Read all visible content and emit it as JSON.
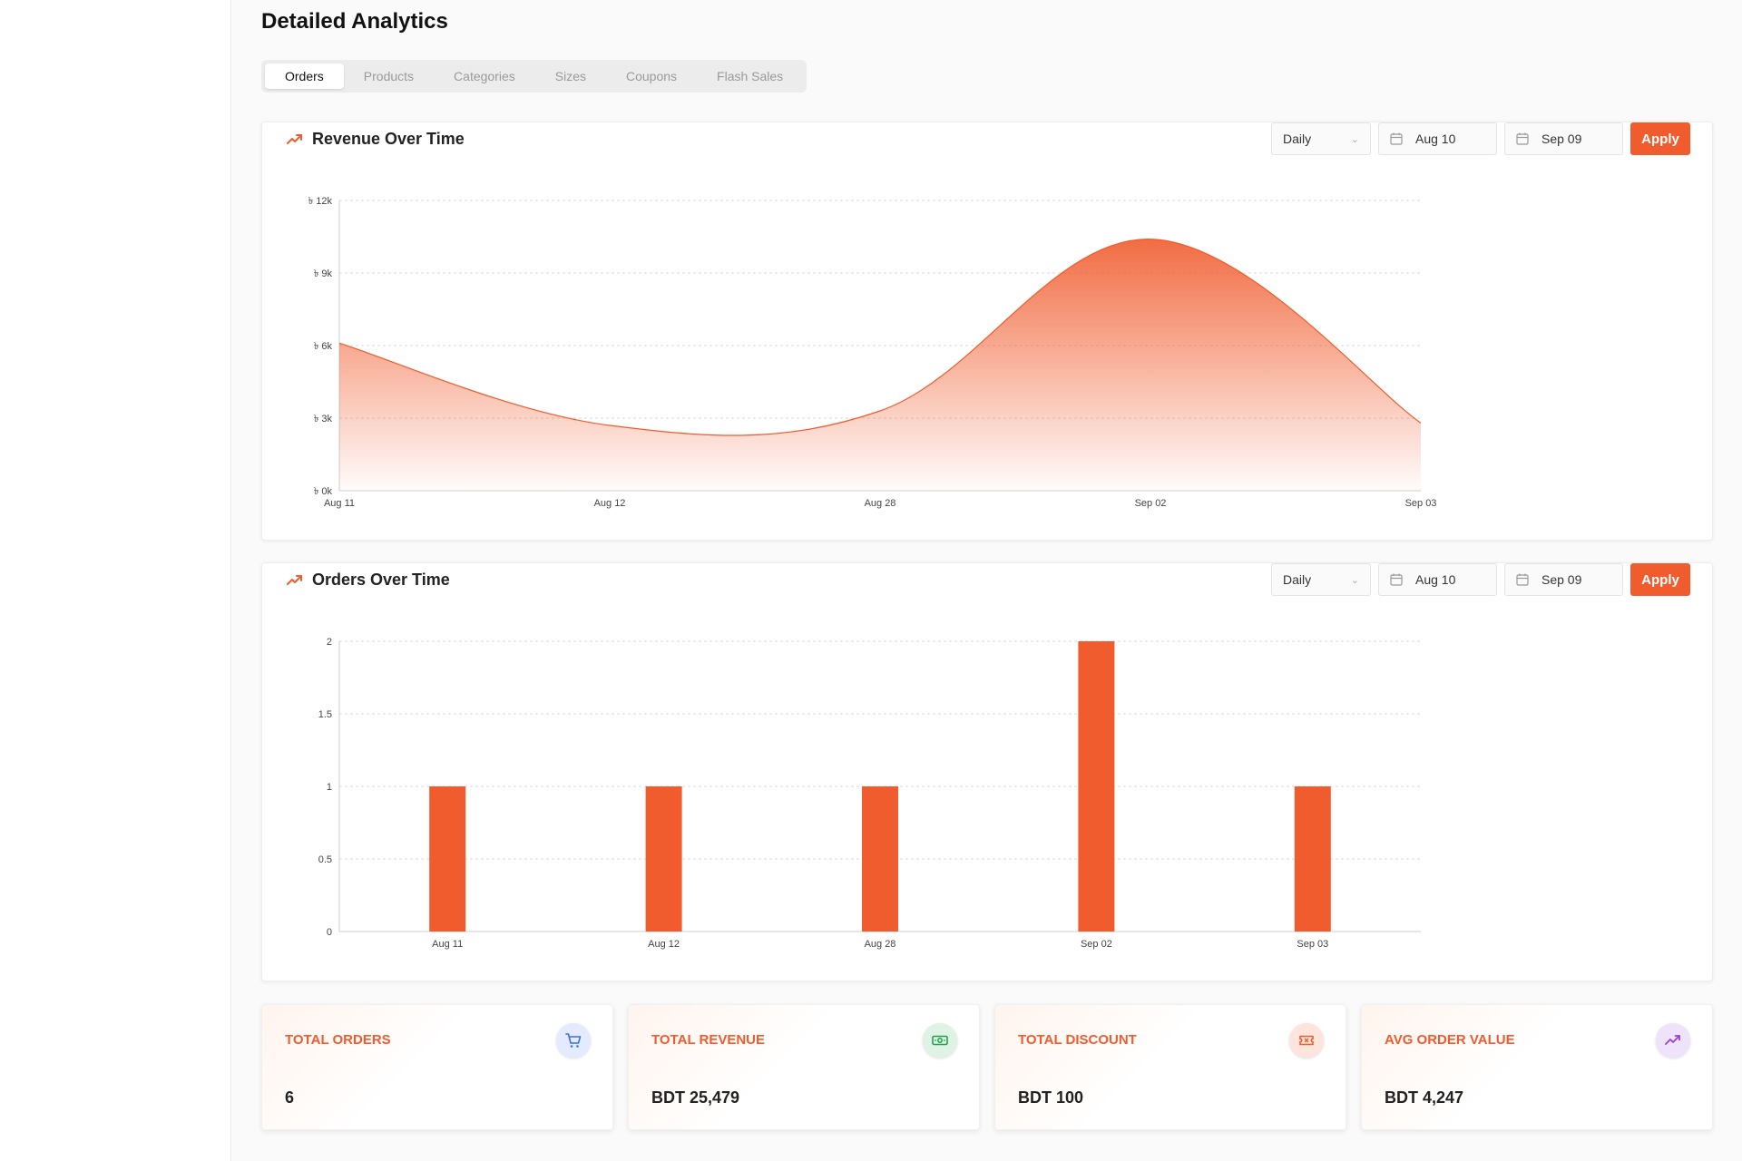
{
  "page": {
    "title": "Detailed Analytics"
  },
  "tabs": [
    {
      "label": "Orders",
      "active": true
    },
    {
      "label": "Products",
      "active": false
    },
    {
      "label": "Categories",
      "active": false
    },
    {
      "label": "Sizes",
      "active": false
    },
    {
      "label": "Coupons",
      "active": false
    },
    {
      "label": "Flash Sales",
      "active": false
    }
  ],
  "revenue_card": {
    "title": "Revenue Over Time",
    "period": "Daily",
    "start_date": "Aug 10",
    "end_date": "Sep 09",
    "apply_label": "Apply"
  },
  "orders_card": {
    "title": "Orders Over Time",
    "period": "Daily",
    "start_date": "Aug 10",
    "end_date": "Sep 09",
    "apply_label": "Apply"
  },
  "stats": [
    {
      "label": "TOTAL ORDERS",
      "value": "6",
      "icon": "cart-icon",
      "icon_bg": "#e4ebff",
      "icon_color": "#3d6fe0"
    },
    {
      "label": "TOTAL REVENUE",
      "value": "BDT 25,479",
      "icon": "money-icon",
      "icon_bg": "#dff3e4",
      "icon_color": "#22a04b"
    },
    {
      "label": "TOTAL DISCOUNT",
      "value": "BDT 100",
      "icon": "ticket-icon",
      "icon_bg": "#fde4dc",
      "icon_color": "#f05c2e"
    },
    {
      "label": "AVG ORDER VALUE",
      "value": "BDT 4,247",
      "icon": "trend-up-icon",
      "icon_bg": "#efe2fb",
      "icon_color": "#9b40e0"
    }
  ],
  "colors": {
    "accent": "#f05c2e",
    "grid": "#d9d9d9"
  },
  "chart_data": [
    {
      "type": "area",
      "title": "Revenue Over Time",
      "categories": [
        "Aug 11",
        "Aug 12",
        "Aug 28",
        "Sep 02",
        "Sep 03"
      ],
      "series": [
        {
          "values": [
            6100,
            2700,
            3300,
            10400,
            2800
          ]
        }
      ],
      "y_ticks": [
        "৳ 0k",
        "৳ 3k",
        "৳ 6k",
        "৳ 9k",
        "৳ 12k"
      ],
      "ylim": [
        0,
        12000
      ],
      "grid": true
    },
    {
      "type": "bar",
      "title": "Orders Over Time",
      "categories": [
        "Aug 11",
        "Aug 12",
        "Aug 28",
        "Sep 02",
        "Sep 03"
      ],
      "series": [
        {
          "values": [
            1,
            1,
            1,
            2,
            1
          ]
        }
      ],
      "y_ticks": [
        "0",
        "0.5",
        "1",
        "1.5",
        "2"
      ],
      "ylim": [
        0,
        2
      ],
      "grid": true
    }
  ]
}
